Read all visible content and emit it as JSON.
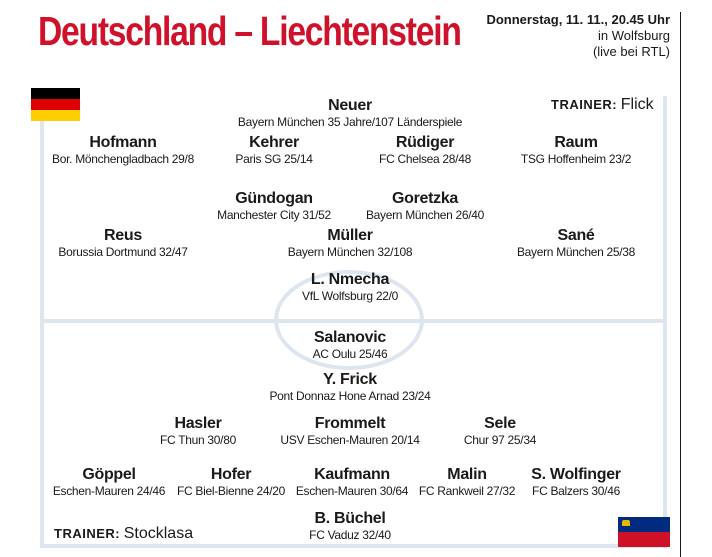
{
  "headline": "Deutschland – Liechtenstein",
  "match": {
    "date": "Donnerstag, 11. 11., 20.45 Uhr",
    "venue": "in Wolfsburg",
    "tv": "(live bei RTL)"
  },
  "germany": {
    "flag_colors": [
      "#000000",
      "#dd0000",
      "#ffce00"
    ],
    "coach_label": "TRAINER:",
    "coach": "Flick",
    "players": [
      {
        "name": "Neuer",
        "info": "Bayern München 35 Jahre/107 Länderspiele"
      },
      {
        "name": "Hofmann",
        "info": "Bor. Mönchengladbach 29/8"
      },
      {
        "name": "Kehrer",
        "info": "Paris SG 25/14"
      },
      {
        "name": "Rüdiger",
        "info": "FC Chelsea 28/48"
      },
      {
        "name": "Raum",
        "info": "TSG Hoffenheim 23/2"
      },
      {
        "name": "Gündogan",
        "info": "Manchester City 31/52"
      },
      {
        "name": "Goretzka",
        "info": "Bayern München 26/40"
      },
      {
        "name": "Reus",
        "info": "Borussia Dortmund 32/47"
      },
      {
        "name": "Müller",
        "info": "Bayern München 32/108"
      },
      {
        "name": "Sané",
        "info": "Bayern München 25/38"
      },
      {
        "name": "L. Nmecha",
        "info": "VfL Wolfsburg 22/0"
      }
    ]
  },
  "liechtenstein": {
    "flag_colors": [
      "#002b7f",
      "#ce1126"
    ],
    "coach_label": "TRAINER:",
    "coach": "Stocklasa",
    "players": [
      {
        "name": "Salanovic",
        "info": "AC Oulu 25/46"
      },
      {
        "name": "Y. Frick",
        "info": "Pont Donnaz Hone Arnad 23/24"
      },
      {
        "name": "Hasler",
        "info": "FC Thun 30/80"
      },
      {
        "name": "Frommelt",
        "info": "USV Eschen-Mauren 20/14"
      },
      {
        "name": "Sele",
        "info": "Chur 97 25/34"
      },
      {
        "name": "Göppel",
        "info": "Eschen-Mauren 24/46"
      },
      {
        "name": "Hofer",
        "info": "FC Biel-Bienne 24/20"
      },
      {
        "name": "Kaufmann",
        "info": "Eschen-Mauren 30/64"
      },
      {
        "name": "Malin",
        "info": "FC Rankweil 27/32"
      },
      {
        "name": "S. Wolfinger",
        "info": "FC Balzers 30/46"
      },
      {
        "name": "B. Büchel",
        "info": "FC Vaduz 32/40"
      }
    ]
  },
  "colors": {
    "headline": "#d0112b",
    "pitch_lines": "#dde6ee"
  }
}
